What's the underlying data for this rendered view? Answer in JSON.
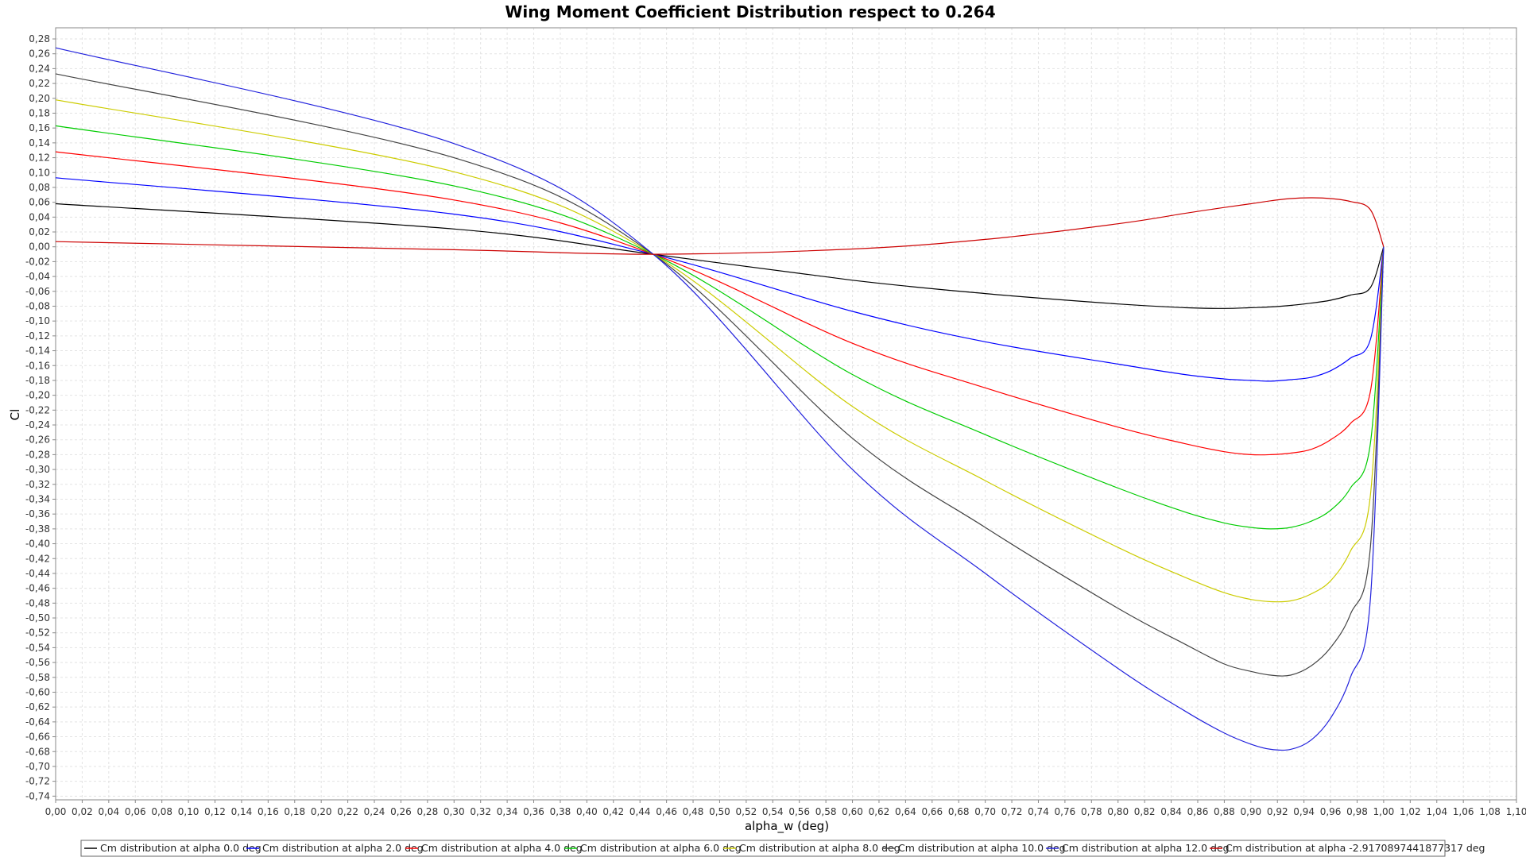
{
  "chart_data": {
    "type": "line",
    "title": "Wing Moment Coefficient Distribution respect to 0.264",
    "xlabel": "alpha_w (deg)",
    "ylabel": "Cl",
    "xlim": [
      0.0,
      1.1
    ],
    "ylim": [
      -0.745,
      0.295
    ],
    "x_ticks": [
      "0,00",
      "0,02",
      "0,04",
      "0,06",
      "0,08",
      "0,10",
      "0,12",
      "0,14",
      "0,16",
      "0,18",
      "0,20",
      "0,22",
      "0,24",
      "0,26",
      "0,28",
      "0,30",
      "0,32",
      "0,34",
      "0,36",
      "0,38",
      "0,40",
      "0,42",
      "0,44",
      "0,46",
      "0,48",
      "0,50",
      "0,52",
      "0,54",
      "0,56",
      "0,58",
      "0,60",
      "0,62",
      "0,64",
      "0,66",
      "0,68",
      "0,70",
      "0,72",
      "0,74",
      "0,76",
      "0,78",
      "0,80",
      "0,82",
      "0,84",
      "0,86",
      "0,88",
      "0,90",
      "0,92",
      "0,94",
      "0,96",
      "0,98",
      "1,00",
      "1,02",
      "1,04",
      "1,06",
      "1,08",
      "1,10"
    ],
    "y_ticks": [
      "0,28",
      "0,26",
      "0,24",
      "0,22",
      "0,20",
      "0,18",
      "0,16",
      "0,14",
      "0,12",
      "0,10",
      "0,08",
      "0,06",
      "0,04",
      "0,02",
      "0,00",
      "-0,02",
      "-0,04",
      "-0,06",
      "-0,08",
      "-0,10",
      "-0,12",
      "-0,14",
      "-0,16",
      "-0,18",
      "-0,20",
      "-0,22",
      "-0,24",
      "-0,26",
      "-0,28",
      "-0,30",
      "-0,32",
      "-0,34",
      "-0,36",
      "-0,38",
      "-0,40",
      "-0,42",
      "-0,44",
      "-0,46",
      "-0,48",
      "-0,50",
      "-0,52",
      "-0,54",
      "-0,56",
      "-0,58",
      "-0,60",
      "-0,62",
      "-0,64",
      "-0,66",
      "-0,68",
      "-0,70",
      "-0,72",
      "-0,74"
    ],
    "grid": true,
    "legend_position": "bottom",
    "x": [
      0.0,
      0.3,
      0.45,
      0.6,
      0.7,
      0.8,
      0.85,
      0.88,
      0.9,
      0.915,
      0.93,
      0.945,
      0.96,
      0.975,
      0.99,
      1.0
    ],
    "series": [
      {
        "name": "Cm distribution at alpha 0.0 deg",
        "color": "#000000",
        "values": [
          0.058,
          0.024,
          -0.01,
          -0.045,
          -0.063,
          -0.077,
          -0.082,
          -0.083,
          -0.082,
          -0.081,
          -0.079,
          -0.076,
          -0.072,
          -0.065,
          -0.055,
          0.0
        ]
      },
      {
        "name": "Cm distribution at alpha 2.0 deg",
        "color": "#0000ff",
        "values": [
          0.093,
          0.044,
          -0.01,
          -0.087,
          -0.128,
          -0.158,
          -0.172,
          -0.178,
          -0.18,
          -0.181,
          -0.179,
          -0.176,
          -0.167,
          -0.15,
          -0.125,
          0.0
        ]
      },
      {
        "name": "Cm distribution at alpha 4.0 deg",
        "color": "#ff0000",
        "values": [
          0.128,
          0.063,
          -0.01,
          -0.13,
          -0.19,
          -0.243,
          -0.265,
          -0.276,
          -0.28,
          -0.28,
          -0.278,
          -0.273,
          -0.26,
          -0.238,
          -0.195,
          0.0
        ]
      },
      {
        "name": "Cm distribution at alpha 6.0 deg",
        "color": "#00cc00",
        "values": [
          0.163,
          0.082,
          -0.01,
          -0.172,
          -0.253,
          -0.325,
          -0.357,
          -0.372,
          -0.378,
          -0.38,
          -0.378,
          -0.37,
          -0.355,
          -0.325,
          -0.265,
          0.0
        ]
      },
      {
        "name": "Cm distribution at alpha 8.0 deg",
        "color": "#cccc00",
        "values": [
          0.198,
          0.101,
          -0.01,
          -0.215,
          -0.315,
          -0.405,
          -0.445,
          -0.466,
          -0.475,
          -0.478,
          -0.477,
          -0.468,
          -0.45,
          -0.41,
          -0.335,
          0.0
        ]
      },
      {
        "name": "Cm distribution at alpha 10.0 deg",
        "color": "#444444",
        "values": [
          0.233,
          0.12,
          -0.01,
          -0.258,
          -0.378,
          -0.487,
          -0.535,
          -0.562,
          -0.572,
          -0.577,
          -0.577,
          -0.565,
          -0.54,
          -0.495,
          -0.405,
          0.0
        ]
      },
      {
        "name": "Cm distribution at alpha 12.0 deg",
        "color": "#2222dd",
        "values": [
          0.268,
          0.139,
          -0.01,
          -0.3,
          -0.44,
          -0.568,
          -0.625,
          -0.655,
          -0.67,
          -0.677,
          -0.677,
          -0.665,
          -0.635,
          -0.58,
          -0.475,
          0.0
        ]
      },
      {
        "name": "Cm distribution at alpha -2.9170897441877317 deg",
        "color": "#cc0000",
        "values": [
          0.007,
          -0.004,
          -0.01,
          -0.003,
          0.01,
          0.031,
          0.045,
          0.053,
          0.058,
          0.062,
          0.065,
          0.066,
          0.065,
          0.061,
          0.05,
          0.0
        ]
      }
    ]
  }
}
